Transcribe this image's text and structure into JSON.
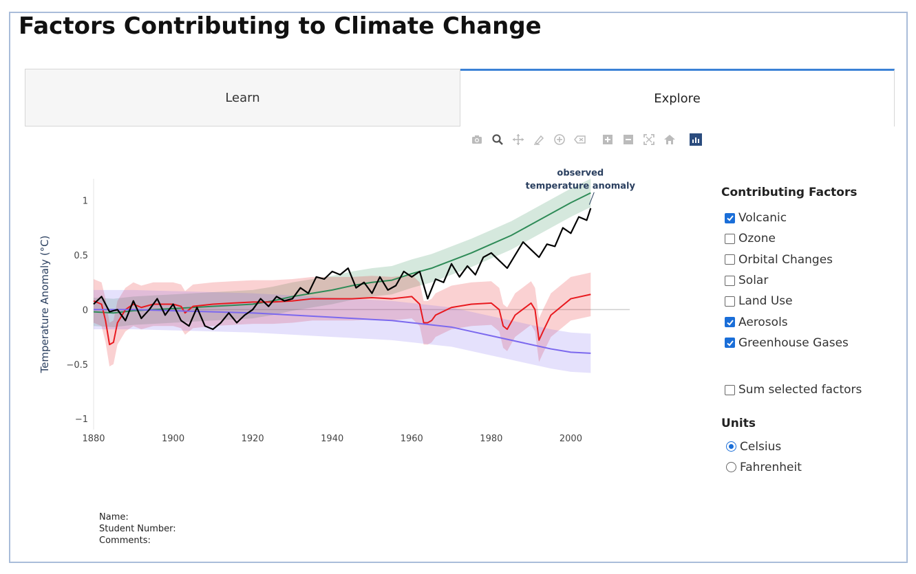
{
  "page": {
    "title": "Factors Contributing to Climate Change"
  },
  "tabs": [
    {
      "label": "Learn",
      "active": false
    },
    {
      "label": "Explore",
      "active": true
    }
  ],
  "modebar": {
    "icons": [
      "camera-icon",
      "zoom-icon",
      "pan-icon",
      "lasso-icon",
      "zoom-in-icon",
      "zoom-out-icon",
      "autoscale-icon",
      "reset-axes-icon",
      "home-icon",
      "plotly-logo-icon"
    ]
  },
  "panel": {
    "factors_title": "Contributing Factors",
    "factors": [
      {
        "label": "Volcanic",
        "checked": true
      },
      {
        "label": "Ozone",
        "checked": false
      },
      {
        "label": "Orbital Changes",
        "checked": false
      },
      {
        "label": "Solar",
        "checked": false
      },
      {
        "label": "Land Use",
        "checked": false
      },
      {
        "label": "Aerosols",
        "checked": true
      },
      {
        "label": "Greenhouse Gases",
        "checked": true
      }
    ],
    "sum_label": "Sum selected factors",
    "sum_checked": false,
    "units_title": "Units",
    "units": [
      {
        "label": "Celsius",
        "checked": true
      },
      {
        "label": "Fahrenheit",
        "checked": false
      }
    ]
  },
  "footer": {
    "name": "Name:",
    "student_number": "Student Number:",
    "comments": "Comments:"
  },
  "chart_data": {
    "type": "line",
    "title": "",
    "xlabel": "",
    "ylabel": "Temperature Anomaly (°C)",
    "xlim": [
      1880,
      2020
    ],
    "ylim": [
      -1.1,
      1.2
    ],
    "xticks": [
      1880,
      1900,
      1920,
      1940,
      1960,
      1980,
      2000
    ],
    "yticks": [
      {
        "value": 1,
        "label": "1"
      },
      {
        "value": 0.5,
        "label": "0.5"
      },
      {
        "value": 0,
        "label": "0"
      },
      {
        "value": -0.5,
        "label": "−0.5"
      },
      {
        "value": -1,
        "label": "−1"
      }
    ],
    "annotation": {
      "text_line1": "observed",
      "text_line2": "temperature anomaly",
      "x": 2005,
      "y": 0.95
    },
    "colors": {
      "observed": "#000000",
      "greenhouse": "#2e8b57",
      "volcanic": "#e8191e",
      "aerosols": "#7b68ee"
    },
    "series": [
      {
        "key": "greenhouse",
        "x": [
          1880,
          1885,
          1890,
          1895,
          1900,
          1905,
          1910,
          1915,
          1920,
          1925,
          1930,
          1935,
          1940,
          1945,
          1950,
          1955,
          1960,
          1965,
          1970,
          1975,
          1980,
          1985,
          1990,
          1995,
          2000,
          2005
        ],
        "y": [
          -0.02,
          -0.03,
          -0.01,
          0.0,
          0.01,
          0.02,
          0.03,
          0.04,
          0.05,
          0.08,
          0.12,
          0.15,
          0.18,
          0.22,
          0.25,
          0.27,
          0.33,
          0.38,
          0.45,
          0.52,
          0.6,
          0.68,
          0.78,
          0.88,
          0.98,
          1.07
        ],
        "band": 0.13
      },
      {
        "key": "volcanic",
        "x": [
          1880,
          1882,
          1883,
          1884,
          1885,
          1886,
          1888,
          1890,
          1892,
          1895,
          1900,
          1902,
          1903,
          1905,
          1910,
          1915,
          1920,
          1925,
          1930,
          1935,
          1940,
          1945,
          1950,
          1955,
          1960,
          1962,
          1963,
          1964,
          1965,
          1966,
          1970,
          1975,
          1980,
          1982,
          1983,
          1984,
          1986,
          1990,
          1991,
          1992,
          1993,
          1995,
          2000,
          2005
        ],
        "y": [
          0.08,
          0.05,
          -0.1,
          -0.32,
          -0.3,
          -0.12,
          0.0,
          0.05,
          0.02,
          0.05,
          0.05,
          0.03,
          -0.03,
          0.03,
          0.05,
          0.06,
          0.07,
          0.07,
          0.08,
          0.1,
          0.1,
          0.1,
          0.11,
          0.1,
          0.12,
          0.05,
          -0.12,
          -0.12,
          -0.1,
          -0.05,
          0.02,
          0.05,
          0.06,
          0.0,
          -0.15,
          -0.18,
          -0.05,
          0.06,
          0.0,
          -0.28,
          -0.2,
          -0.05,
          0.1,
          0.14
        ],
        "band": 0.2
      },
      {
        "key": "aerosols",
        "x": [
          1880,
          1890,
          1900,
          1910,
          1920,
          1930,
          1940,
          1950,
          1955,
          1960,
          1965,
          1970,
          1975,
          1980,
          1985,
          1990,
          1995,
          2000,
          2005
        ],
        "y": [
          0.0,
          0.0,
          -0.01,
          -0.02,
          -0.03,
          -0.05,
          -0.07,
          -0.09,
          -0.1,
          -0.12,
          -0.14,
          -0.16,
          -0.2,
          -0.24,
          -0.28,
          -0.32,
          -0.36,
          -0.39,
          -0.4
        ],
        "band": 0.18
      },
      {
        "key": "observed",
        "x": [
          1880,
          1882,
          1884,
          1886,
          1888,
          1890,
          1892,
          1894,
          1896,
          1898,
          1900,
          1902,
          1904,
          1906,
          1908,
          1910,
          1912,
          1914,
          1916,
          1918,
          1920,
          1922,
          1924,
          1926,
          1928,
          1930,
          1932,
          1934,
          1936,
          1938,
          1940,
          1942,
          1944,
          1946,
          1948,
          1950,
          1952,
          1954,
          1956,
          1958,
          1960,
          1962,
          1964,
          1966,
          1968,
          1970,
          1972,
          1974,
          1976,
          1978,
          1980,
          1982,
          1984,
          1986,
          1988,
          1990,
          1992,
          1994,
          1996,
          1998,
          2000,
          2002,
          2004,
          2005
        ],
        "y": [
          0.05,
          0.12,
          -0.02,
          0.0,
          -0.1,
          0.08,
          -0.08,
          0.0,
          0.1,
          -0.05,
          0.05,
          -0.1,
          -0.15,
          0.02,
          -0.15,
          -0.18,
          -0.12,
          -0.03,
          -0.12,
          -0.05,
          0.0,
          0.1,
          0.03,
          0.12,
          0.08,
          0.1,
          0.2,
          0.15,
          0.3,
          0.28,
          0.35,
          0.32,
          0.38,
          0.2,
          0.25,
          0.15,
          0.3,
          0.18,
          0.22,
          0.35,
          0.3,
          0.35,
          0.1,
          0.28,
          0.25,
          0.42,
          0.3,
          0.4,
          0.32,
          0.48,
          0.52,
          0.45,
          0.38,
          0.5,
          0.62,
          0.55,
          0.48,
          0.6,
          0.58,
          0.75,
          0.7,
          0.85,
          0.82,
          0.93
        ],
        "band": 0
      }
    ]
  }
}
